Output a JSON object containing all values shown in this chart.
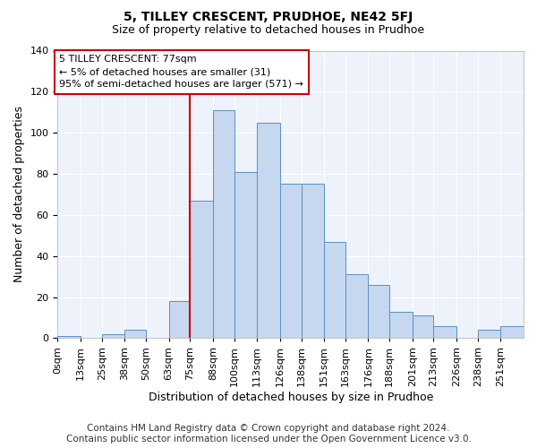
{
  "title": "5, TILLEY CRESCENT, PRUDHOE, NE42 5FJ",
  "subtitle": "Size of property relative to detached houses in Prudhoe",
  "xlabel": "Distribution of detached houses by size in Prudhoe",
  "ylabel": "Number of detached properties",
  "footer_line1": "Contains HM Land Registry data © Crown copyright and database right 2024.",
  "footer_line2": "Contains public sector information licensed under the Open Government Licence v3.0.",
  "annotation_title": "5 TILLEY CRESCENT: 77sqm",
  "annotation_line2": "← 5% of detached houses are smaller (31)",
  "annotation_line3": "95% of semi-detached houses are larger (571) →",
  "property_size": 77,
  "bar_left_edges": [
    0,
    13,
    25,
    38,
    50,
    63,
    75,
    88,
    100,
    113,
    126,
    138,
    151,
    163,
    176,
    188,
    201,
    213,
    226,
    238,
    251
  ],
  "bar_widths": [
    13,
    12,
    13,
    12,
    13,
    12,
    13,
    12,
    13,
    13,
    12,
    13,
    12,
    13,
    12,
    13,
    12,
    13,
    12,
    13,
    13
  ],
  "bar_heights": [
    1,
    0,
    2,
    4,
    0,
    18,
    67,
    111,
    81,
    105,
    75,
    75,
    47,
    31,
    26,
    13,
    11,
    6,
    0,
    4,
    6
  ],
  "categories": [
    "0sqm",
    "13sqm",
    "25sqm",
    "38sqm",
    "50sqm",
    "63sqm",
    "75sqm",
    "88sqm",
    "100sqm",
    "113sqm",
    "126sqm",
    "138sqm",
    "151sqm",
    "163sqm",
    "176sqm",
    "188sqm",
    "201sqm",
    "213sqm",
    "226sqm",
    "238sqm",
    "251sqm"
  ],
  "bar_fill_color": "#c5d8f0",
  "bar_edge_color": "#5b8fc7",
  "vline_color": "#cc0000",
  "vline_x": 75,
  "annotation_box_color": "#cc0000",
  "background_color": "#eef2fa",
  "ylim": [
    0,
    140
  ],
  "yticks": [
    0,
    20,
    40,
    60,
    80,
    100,
    120,
    140
  ],
  "title_fontsize": 10,
  "subtitle_fontsize": 9,
  "axis_label_fontsize": 9,
  "tick_fontsize": 8,
  "footer_fontsize": 7.5,
  "annotation_fontsize": 8
}
